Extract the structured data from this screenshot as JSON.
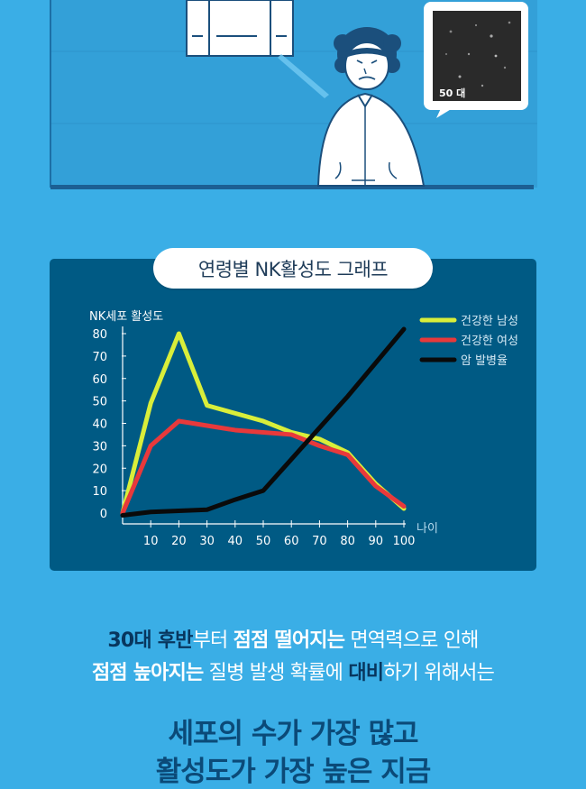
{
  "illustration": {
    "micro_label": "50 대"
  },
  "chart_title": "연령별 NK활성도 그래프",
  "chart_data": {
    "type": "line",
    "ylabel": "NK세포 활성도",
    "xlabel": "나이",
    "ylim": [
      0,
      80
    ],
    "xlim": [
      0,
      100
    ],
    "x_ticks": [
      10,
      20,
      30,
      40,
      50,
      60,
      70,
      80,
      90,
      100
    ],
    "y_ticks": [
      0,
      10,
      20,
      30,
      40,
      50,
      60,
      70,
      80
    ],
    "legend_position": "top-right",
    "series": [
      {
        "name": "건강한 남성",
        "color": "#d9ee3a",
        "x": [
          0,
          10,
          20,
          30,
          50,
          60,
          70,
          80,
          90,
          100
        ],
        "y": [
          0,
          49,
          80,
          48,
          41,
          36,
          33,
          27,
          13,
          2
        ]
      },
      {
        "name": "건강한 여성",
        "color": "#e8393b",
        "x": [
          0,
          10,
          20,
          30,
          40,
          50,
          60,
          70,
          80,
          90,
          100
        ],
        "y": [
          0,
          30,
          41,
          39,
          37,
          36,
          35,
          30,
          26,
          12,
          3
        ]
      },
      {
        "name": "암 발병율",
        "color": "#0a0a0a",
        "x": [
          0,
          10,
          20,
          30,
          40,
          50,
          60,
          70,
          80,
          90,
          100
        ],
        "y": [
          -1,
          0.5,
          1,
          1.5,
          6,
          10,
          24,
          38,
          52,
          67,
          82
        ]
      }
    ]
  },
  "text_block": {
    "l1_a": "30대 후반",
    "l1_b": "부터 ",
    "l1_c": "점점 떨어지는",
    "l1_d": " 면역력으로 인해",
    "l2_a": "점점 높아지는",
    "l2_b": " 질병 발생 확률에 ",
    "l2_c": "대비",
    "l2_d": "하기 위해서는",
    "l3": "세포의 수가 가장 많고",
    "l4": "활성도가 가장 높은 지금"
  }
}
